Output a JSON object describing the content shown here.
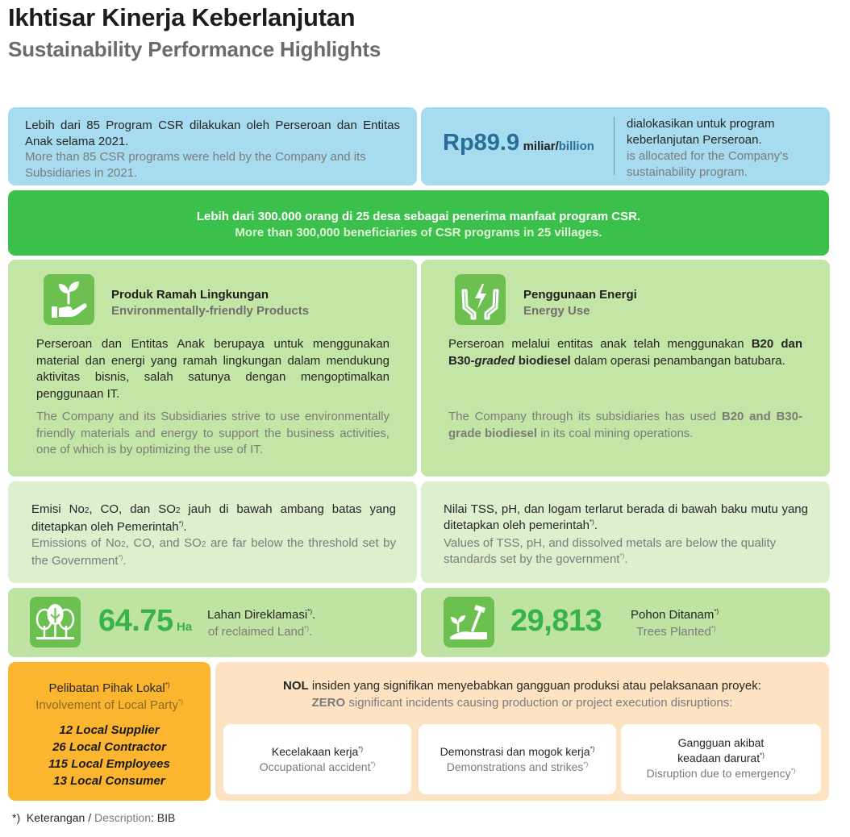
{
  "header": {
    "title_id": "Ikhtisar Kinerja Keberlanjutan",
    "title_en": "Sustainability Performance Highlights"
  },
  "csr_programs": {
    "text_id": "Lebih dari 85 Program CSR dilakukan oleh Perseroan dan Entitas Anak selama 2021.",
    "text_en": "More than 85 CSR programs were held by the Company and its Subsidiaries in 2021."
  },
  "csr_budget": {
    "amount": "Rp89.9",
    "unit_id": "miliar/",
    "unit_en": "billion",
    "text_id": "dialokasikan untuk program keberlanjutan Perseroan.",
    "text_en": "is allocated for the Company's sustainability program."
  },
  "beneficiaries": {
    "text_id": "Lebih dari 300.000 orang di 25 desa sebagai penerima manfaat program CSR.",
    "text_en": "More than 300,000 beneficiaries of CSR programs in 25 villages."
  },
  "eco_products": {
    "icon": "hand-sprout-icon",
    "title_id": "Produk Ramah Lingkungan",
    "title_en": "Environmentally-friendly Products",
    "body_id": "Perseroan dan Entitas Anak berupaya untuk menggunakan material dan energi yang ramah lingkungan dalam mendukung aktivitas bisnis, salah satunya dengan mengoptimalkan penggunaan IT.",
    "body_en": "The Company and its Subsidiaries strive to use environmentally friendly materials and energy to support the business activities, one of which is by optimizing the use of IT."
  },
  "energy_use": {
    "icon": "hands-energy-icon",
    "title_id": "Penggunaan Energi",
    "title_en": "Energy Use",
    "body_id_1": "Perseroan melalui entitas anak telah menggunakan ",
    "body_id_bold_1": "B20 dan B30-",
    "body_id_bold_italic": "graded",
    "body_id_bold_2": " biodiesel",
    "body_id_2": " dalam operasi penambangan batubara.",
    "body_en_1": "The Company through its subsidiaries has used ",
    "body_en_bold": "B20 and B30-grade biodiesel",
    "body_en_2": " in its coal mining operations."
  },
  "emissions": {
    "id_1": "Emisi No",
    "id_2": ", CO, dan SO",
    "id_3": " jauh di bawah ambang batas yang ditetapkan oleh Pemerintah",
    "en_1": "Emissions of No",
    "en_2": ", CO, and SO",
    "en_3": " are far below the threshold set by the Government",
    "sub": "2",
    "mark": "*)",
    "dot": "."
  },
  "water": {
    "text_id": "Nilai TSS, pH, dan logam terlarut berada di bawah baku mutu yang ditetapkan oleh pemerintah",
    "text_en": "Values of TSS, pH, and dissolved metals are below the quality standards set by the government",
    "mark": "*)",
    "dot": "."
  },
  "reclaimed_land": {
    "icon": "forest-icon",
    "value": "64.75",
    "unit": "Ha",
    "label_id": "Lahan Direklamasi",
    "label_en": "of reclaimed Land",
    "mark": "*)",
    "dot": "."
  },
  "trees_planted": {
    "icon": "shovel-sapling-icon",
    "value": "29,813",
    "label_id": "Pohon Ditanam",
    "label_en": "Trees Planted",
    "mark": "*)"
  },
  "local_party": {
    "title_id": "Pelibatan Pihak Lokal",
    "title_en": "Involvement of Local Party",
    "mark": "*)",
    "items": [
      "12 Local Supplier",
      "26 Local Contractor",
      "115 Local Employees",
      "13 Local Consumer"
    ]
  },
  "zero_incidents": {
    "head_id_bold": "NOL",
    "head_id": " insiden yang signifikan menyebabkan gangguan produksi atau pelaksanaan proyek:",
    "head_en_bold": "ZERO",
    "head_en": " significant incidents causing production or project execution disruptions:",
    "cards": [
      {
        "id": "Kecelakaan kerja",
        "en": "Occupational accident"
      },
      {
        "id": "Demonstrasi dan mogok kerja",
        "en": "Demonstrations and strikes"
      },
      {
        "id_line1": "Gangguan akibat",
        "id_line2": "keadaan darurat",
        "en": "Disruption due to emergency"
      }
    ],
    "mark": "*)"
  },
  "footnote": {
    "mark": "*)",
    "label_id": "Keterangan /",
    "label_en": "Description",
    "value": ": BIB"
  },
  "colors": {
    "accent_green": "#3cc04c",
    "blue": "#a6dbf0",
    "orange": "#fbb52f",
    "peach": "#fde3c2",
    "amount_blue": "#2a6d98"
  }
}
